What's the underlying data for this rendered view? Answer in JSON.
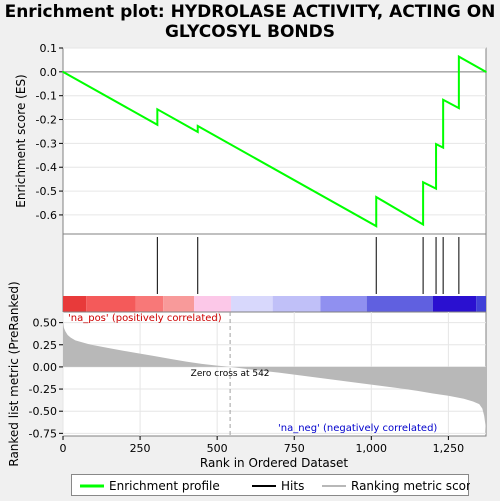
{
  "chart_data": {
    "type": "line",
    "title": "Enrichment plot: HYDROLASE ACTIVITY, ACTING ON GLYCOSYL BONDS",
    "es_panel": {
      "ylabel": "Enrichment score (ES)",
      "ylim": [
        -0.68,
        0.1
      ],
      "yticks": [
        0.1,
        0.0,
        -0.1,
        -0.2,
        -0.3,
        -0.4,
        -0.5,
        -0.6
      ],
      "ytick_labels": [
        "0.1",
        "0.0",
        "-0.1",
        "-0.2",
        "-0.3",
        "-0.4",
        "-0.5",
        "-0.6"
      ],
      "series_name": "Enrichment profile",
      "color": "#00ff00",
      "x": [
        0,
        306,
        306,
        437,
        437,
        1016,
        1016,
        1168,
        1168,
        1210,
        1210,
        1233,
        1233,
        1284,
        1284,
        1372
      ],
      "y": [
        0.0,
        -0.222,
        -0.157,
        -0.252,
        -0.227,
        -0.647,
        -0.525,
        -0.64,
        -0.463,
        -0.49,
        -0.303,
        -0.318,
        -0.117,
        -0.152,
        0.064,
        0.0
      ]
    },
    "hits": {
      "series_name": "Hits",
      "positions": [
        306,
        437,
        1016,
        1168,
        1210,
        1233,
        1284
      ]
    },
    "rank_panel": {
      "xlabel": "Rank in Ordered Dataset",
      "ylabel": "Ranked list metric (PreRanked)",
      "xlim": [
        0,
        1372
      ],
      "ylim": [
        -0.78,
        0.62
      ],
      "xticks": [
        0,
        250,
        500,
        750,
        1000,
        1250
      ],
      "xtick_labels": [
        "0",
        "250",
        "500",
        "750",
        "1,000",
        "1,250"
      ],
      "yticks": [
        0.5,
        0.25,
        0.0,
        -0.25,
        -0.5,
        -0.75
      ],
      "ytick_labels": [
        "0.50",
        "0.25",
        "0.00",
        "-0.25",
        "-0.50",
        "-0.75"
      ],
      "series_name": "Ranking metric scores",
      "curve_x": [
        0,
        3,
        8,
        15,
        25,
        40,
        60,
        80,
        100,
        130,
        160,
        200,
        250,
        300,
        350,
        400,
        450,
        500,
        542,
        600,
        700,
        800,
        900,
        1000,
        1100,
        1150,
        1200,
        1250,
        1300,
        1330,
        1350,
        1360,
        1366,
        1370,
        1372
      ],
      "curve_y": [
        0.52,
        0.44,
        0.4,
        0.36,
        0.33,
        0.3,
        0.28,
        0.26,
        0.245,
        0.225,
        0.205,
        0.18,
        0.15,
        0.12,
        0.09,
        0.06,
        0.035,
        0.015,
        0.0,
        -0.025,
        -0.065,
        -0.11,
        -0.155,
        -0.2,
        -0.245,
        -0.27,
        -0.3,
        -0.325,
        -0.36,
        -0.39,
        -0.42,
        -0.47,
        -0.55,
        -0.65,
        -0.75
      ],
      "zero_cross_label": "Zero cross at 542",
      "zero_cross": 542,
      "pos_label": "'na_pos' (positively correlated)",
      "neg_label": "'na_neg' (negatively correlated)"
    },
    "heat_bar": {
      "bounds": [
        0,
        75,
        235,
        325,
        425,
        545,
        680,
        835,
        985,
        1200,
        1340,
        1372
      ],
      "colors": [
        "#e83a3a",
        "#f45a5a",
        "#f87878",
        "#f89a9a",
        "#fcc8e8",
        "#d8d8fc",
        "#c0c0f8",
        "#9090f0",
        "#6060e0",
        "#2a10d0",
        "#4040d8"
      ]
    },
    "legend": {
      "items": [
        "Enrichment profile",
        "Hits",
        "Ranking metric scores"
      ]
    },
    "colors": {
      "es_line": "#00ff00",
      "hit": "#000000",
      "metric_fill": "#b8b8b8",
      "pos_text": "#cc0000",
      "neg_text": "#0000cc"
    }
  }
}
